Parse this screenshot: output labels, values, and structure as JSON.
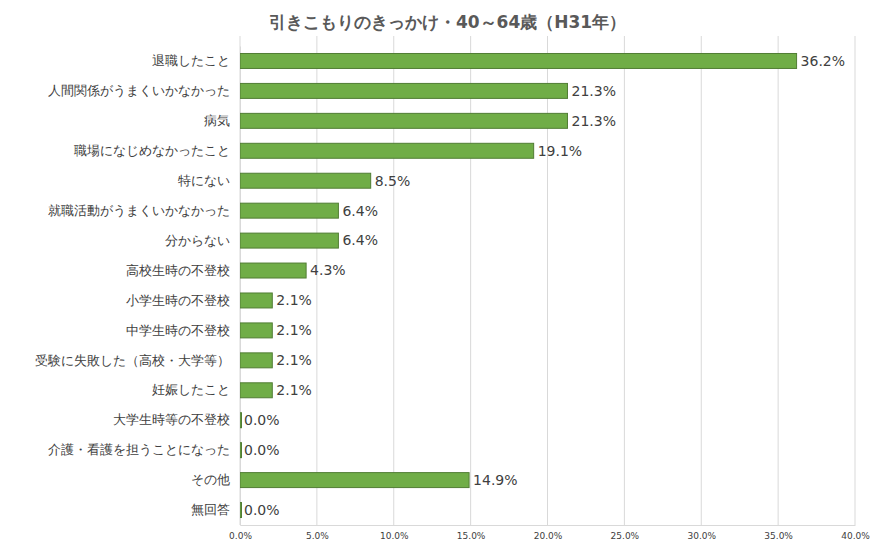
{
  "chart_data": {
    "type": "bar",
    "title": "引きこもりのきっかけ・40～64歳（H31年）",
    "orientation": "horizontal",
    "categories": [
      "退職したこと",
      "人間関係がうまくいかなかった",
      "病気",
      "職場になじめなかったこと",
      "特にない",
      "就職活動がうまくいかなかった",
      "分からない",
      "高校生時の不登校",
      "小学生時の不登校",
      "中学生時の不登校",
      "受験に失敗した（高校・大学等）",
      "妊娠したこと",
      "大学生時等の不登校",
      "介護・看護を担うことになった",
      "その他",
      "無回答"
    ],
    "values": [
      36.2,
      21.3,
      21.3,
      19.1,
      8.5,
      6.4,
      6.4,
      4.3,
      2.1,
      2.1,
      2.1,
      2.1,
      0.0,
      0.0,
      14.9,
      0.0
    ],
    "value_labels": [
      "36.2%",
      "21.3%",
      "21.3%",
      "19.1%",
      "8.5%",
      "6.4%",
      "6.4%",
      "4.3%",
      "2.1%",
      "2.1%",
      "2.1%",
      "2.1%",
      "0.0%",
      "0.0%",
      "14.9%",
      "0.0%"
    ],
    "color": "#70ad47",
    "data_labels": true,
    "grid": true,
    "xlim": [
      0,
      40
    ],
    "xticks": [
      {
        "value": 0,
        "label": "0.0%"
      },
      {
        "value": 5,
        "label": "5.0%"
      },
      {
        "value": 10,
        "label": "10.0%"
      },
      {
        "value": 15,
        "label": "15.0%"
      },
      {
        "value": 20,
        "label": "20.0%"
      },
      {
        "value": 25,
        "label": "25.0%"
      },
      {
        "value": 30,
        "label": "30.0%"
      },
      {
        "value": 35,
        "label": "35.0%"
      },
      {
        "value": 40,
        "label": "40.0%"
      }
    ]
  }
}
